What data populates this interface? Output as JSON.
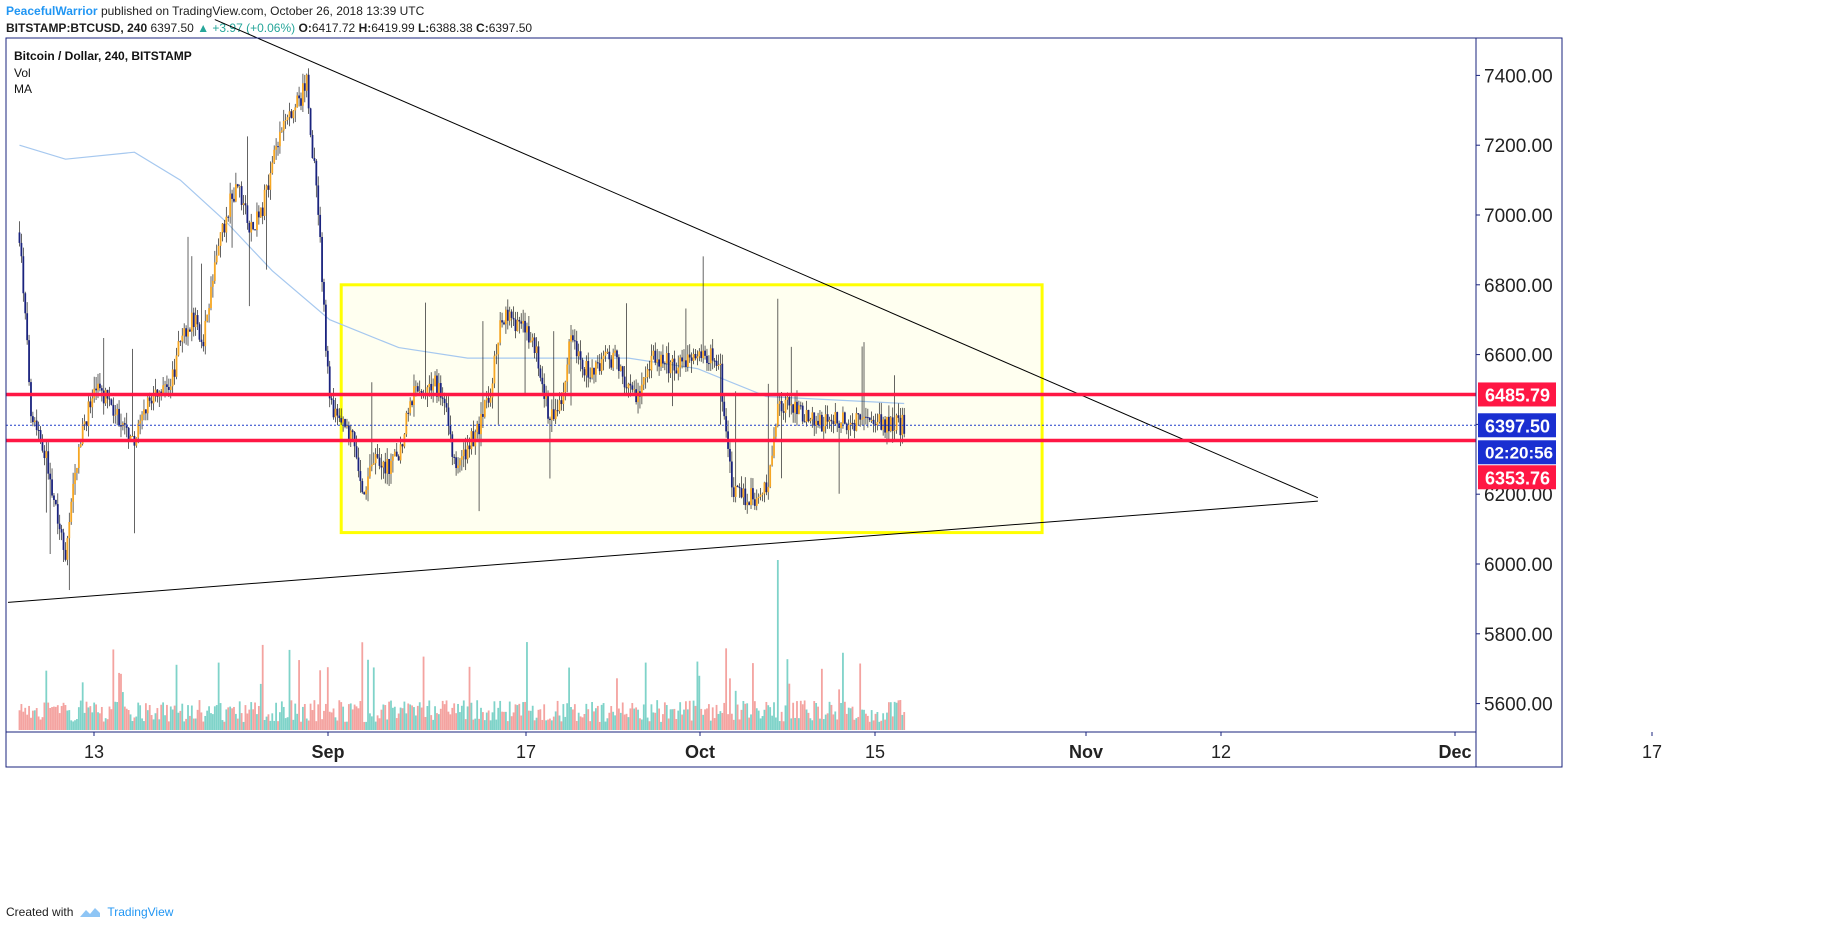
{
  "header": {
    "author": "PeacefulWarrior",
    "published_text": "published on TradingView.com, October 26, 2018 13:39 UTC",
    "symbol": "BITSTAMP:BTCUSD, 240",
    "last": "6397.50",
    "change": "▲ +3.97 (+0.06%)",
    "o_label": "O:",
    "o_value": "6417.72",
    "h_label": "H:",
    "h_value": "6419.99",
    "l_label": "L:",
    "l_value": "6388.38",
    "c_label": "C:",
    "c_value": "6397.50"
  },
  "legend": {
    "title": "Bitcoin / Dollar, 240, BITSTAMP",
    "vol": "Vol",
    "ma": "MA"
  },
  "footer": {
    "created_with": "Created with",
    "brand": "TradingView"
  },
  "colors": {
    "up_candle": "#f5a623",
    "down_candle": "#1a237e",
    "level_line": "#ff1744",
    "box_border": "#ffff00",
    "box_fill": "#fffff0",
    "ma_line": "#a6c8ef",
    "price_line": "#1e3cc8",
    "vol_up": "#7fd3c9",
    "vol_down": "#f4a3a0"
  },
  "chart_data": {
    "type": "candlestick",
    "symbol": "BITSTAMP:BTCUSD",
    "interval": "240",
    "ylim": [
      5520,
      7500
    ],
    "y_ticks": [
      5600,
      5800,
      6000,
      6200,
      6400,
      6600,
      6800,
      7000,
      7200,
      7400
    ],
    "y_tick_labels": [
      "5600.00",
      "5800.00",
      "6000.00",
      "6200.00",
      "6400.00",
      "6600.00",
      "6800.00",
      "7000.00",
      "7200.00",
      "7400.00"
    ],
    "x_labels": [
      "13",
      "Sep",
      "17",
      "Oct",
      "15",
      "Nov",
      "12",
      "Dec",
      "17"
    ],
    "price_path": [
      [
        "2018-08-10",
        6950
      ],
      [
        "2018-08-11",
        6450
      ],
      [
        "2018-08-12",
        6350
      ],
      [
        "2018-08-13",
        6200
      ],
      [
        "2018-08-14",
        6030
      ],
      [
        "2018-08-15",
        6300
      ],
      [
        "2018-08-16",
        6450
      ],
      [
        "2018-08-17",
        6500
      ],
      [
        "2018-08-18",
        6450
      ],
      [
        "2018-08-19",
        6400
      ],
      [
        "2018-08-20",
        6350
      ],
      [
        "2018-08-21",
        6450
      ],
      [
        "2018-08-22",
        6500
      ],
      [
        "2018-08-23",
        6480
      ],
      [
        "2018-08-24",
        6650
      ],
      [
        "2018-08-25",
        6700
      ],
      [
        "2018-08-26",
        6650
      ],
      [
        "2018-08-27",
        6850
      ],
      [
        "2018-08-28",
        7000
      ],
      [
        "2018-08-29",
        7100
      ],
      [
        "2018-08-30",
        6950
      ],
      [
        "2018-08-31",
        7000
      ],
      [
        "2018-09-01",
        7150
      ],
      [
        "2018-09-02",
        7250
      ],
      [
        "2018-09-03",
        7300
      ],
      [
        "2018-09-04",
        7380
      ],
      [
        "2018-09-05",
        7000
      ],
      [
        "2018-09-06",
        6450
      ],
      [
        "2018-09-07",
        6400
      ],
      [
        "2018-09-08",
        6350
      ],
      [
        "2018-09-09",
        6200
      ],
      [
        "2018-09-10",
        6300
      ],
      [
        "2018-09-11",
        6280
      ],
      [
        "2018-09-12",
        6300
      ],
      [
        "2018-09-13",
        6480
      ],
      [
        "2018-09-14",
        6500
      ],
      [
        "2018-09-15",
        6520
      ],
      [
        "2018-09-16",
        6480
      ],
      [
        "2018-09-17",
        6250
      ],
      [
        "2018-09-18",
        6330
      ],
      [
        "2018-09-19",
        6400
      ],
      [
        "2018-09-20",
        6500
      ],
      [
        "2018-09-21",
        6720
      ],
      [
        "2018-09-22",
        6700
      ],
      [
        "2018-09-23",
        6680
      ],
      [
        "2018-09-24",
        6600
      ],
      [
        "2018-09-25",
        6430
      ],
      [
        "2018-09-26",
        6450
      ],
      [
        "2018-09-27",
        6650
      ],
      [
        "2018-09-28",
        6550
      ],
      [
        "2018-09-29",
        6560
      ],
      [
        "2018-09-30",
        6600
      ],
      [
        "2018-10-01",
        6580
      ],
      [
        "2018-10-02",
        6510
      ],
      [
        "2018-10-03",
        6470
      ],
      [
        "2018-10-04",
        6580
      ],
      [
        "2018-10-05",
        6590
      ],
      [
        "2018-10-06",
        6560
      ],
      [
        "2018-10-07",
        6590
      ],
      [
        "2018-10-08",
        6620
      ],
      [
        "2018-10-09",
        6600
      ],
      [
        "2018-10-10",
        6550
      ],
      [
        "2018-10-11",
        6220
      ],
      [
        "2018-10-12",
        6200
      ],
      [
        "2018-10-13",
        6190
      ],
      [
        "2018-10-14",
        6210
      ],
      [
        "2018-10-15",
        6450
      ],
      [
        "2018-10-16",
        6450
      ],
      [
        "2018-10-17",
        6440
      ],
      [
        "2018-10-18",
        6420
      ],
      [
        "2018-10-19",
        6400
      ],
      [
        "2018-10-20",
        6420
      ],
      [
        "2018-10-21",
        6410
      ],
      [
        "2018-10-22",
        6410
      ],
      [
        "2018-10-23",
        6420
      ],
      [
        "2018-10-24",
        6410
      ],
      [
        "2018-10-25",
        6400
      ],
      [
        "2018-10-26",
        6397.5
      ]
    ],
    "ma_path": [
      [
        "2018-08-10",
        7200
      ],
      [
        "2018-08-14",
        7160
      ],
      [
        "2018-08-20",
        7180
      ],
      [
        "2018-08-24",
        7100
      ],
      [
        "2018-08-28",
        6980
      ],
      [
        "2018-09-01",
        6840
      ],
      [
        "2018-09-06",
        6700
      ],
      [
        "2018-09-12",
        6620
      ],
      [
        "2018-09-18",
        6590
      ],
      [
        "2018-09-24",
        6590
      ],
      [
        "2018-10-02",
        6590
      ],
      [
        "2018-10-08",
        6560
      ],
      [
        "2018-10-14",
        6480
      ],
      [
        "2018-10-20",
        6470
      ],
      [
        "2018-10-26",
        6460
      ]
    ],
    "volume_spike_date": "2018-10-15",
    "horizontal_levels": [
      {
        "value": 6485.79,
        "label": "6485.79"
      },
      {
        "value": 6353.76,
        "label": "6353.76"
      }
    ],
    "last_price": {
      "value": 6397.5,
      "label": "6397.50",
      "countdown": "02:20:56"
    },
    "range_box": {
      "from": "2018-09-07",
      "to": "2018-11-07",
      "top": 6800,
      "bottom": 6090
    },
    "trendlines": [
      {
        "from": [
          "2018-08-27",
          7560
        ],
        "to": [
          "2018-12-01",
          6190
        ]
      },
      {
        "from": [
          "2018-08-09",
          5890
        ],
        "to": [
          "2018-12-01",
          6180
        ]
      }
    ]
  }
}
